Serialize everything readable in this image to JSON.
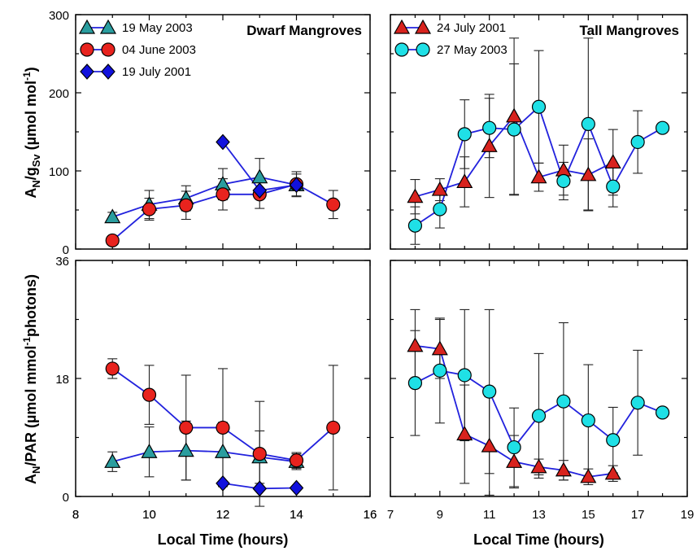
{
  "colors": {
    "line": "#2222dd",
    "triangle": "#2a9d9f",
    "circle_red": "#e8231e",
    "diamond": "#1111dd",
    "circle_cyan": "#1fe0e6",
    "triangle_red": "#d8231e"
  },
  "chart_data": [
    {
      "type": "scatter",
      "panel": "top-left",
      "title": "Dwarf Mangroves",
      "ylabel": "A_N/g_Sv (µmol mol-1)",
      "xlim": [
        8,
        16
      ],
      "ylim": [
        0,
        300
      ],
      "x_ticks": [
        "8",
        "10",
        "12",
        "14",
        "16"
      ],
      "y_ticks": [
        "0",
        "100",
        "200",
        "300"
      ],
      "legend_position": "top-left",
      "series": [
        {
          "name": "19 May 2003",
          "marker": "triangle",
          "x": [
            9,
            10,
            11,
            12,
            13,
            14
          ],
          "y": [
            41,
            57,
            65,
            83,
            92,
            82
          ],
          "err": [
            6,
            18,
            16,
            20,
            24,
            14
          ]
        },
        {
          "name": "04 June 2003",
          "marker": "circle",
          "x": [
            9,
            10,
            11,
            12,
            13,
            14,
            15
          ],
          "y": [
            11,
            51,
            56,
            70,
            70,
            83,
            57
          ],
          "err": [
            0,
            14,
            18,
            20,
            18,
            16,
            18
          ]
        },
        {
          "name": "19 July 2001",
          "marker": "diamond",
          "x": [
            12,
            13,
            14
          ],
          "y": [
            137,
            75,
            82
          ],
          "err": [
            0,
            0,
            0
          ]
        }
      ]
    },
    {
      "type": "scatter",
      "panel": "top-right",
      "title": "Tall Mangroves",
      "xlim": [
        7,
        19
      ],
      "ylim": [
        0,
        300
      ],
      "legend_position": "top-left",
      "series": [
        {
          "name": "24 July 2001",
          "marker": "triangle",
          "x": [
            8,
            9,
            10,
            11,
            12,
            13,
            14,
            15,
            16
          ],
          "y": [
            67,
            76,
            86,
            132,
            170,
            92,
            101,
            95,
            111
          ],
          "err": [
            22,
            14,
            32,
            66,
            100,
            18,
            32,
            46,
            42
          ]
        },
        {
          "name": "27 May 2003",
          "marker": "circle",
          "x": [
            8,
            9,
            10,
            11,
            12,
            13,
            14,
            15,
            16,
            17,
            18
          ],
          "y": [
            30,
            51,
            147,
            155,
            153,
            182,
            87,
            160,
            80,
            137,
            155
          ],
          "err": [
            24,
            24,
            44,
            38,
            84,
            72,
            24,
            110,
            26,
            40,
            6
          ]
        }
      ]
    },
    {
      "type": "scatter",
      "panel": "bottom-left",
      "ylabel": "A_N/PAR (µmol mmol-1 photons)",
      "xlabel": "Local Time (hours)",
      "xlim": [
        8,
        16
      ],
      "ylim": [
        0,
        36
      ],
      "x_ticks": [
        "8",
        "10",
        "12",
        "14",
        "16"
      ],
      "y_ticks": [
        "0",
        "18",
        "36"
      ],
      "series": [
        {
          "name": "19 May 2003",
          "marker": "triangle",
          "x": [
            9,
            10,
            11,
            12,
            13,
            14
          ],
          "y": [
            5.3,
            6.8,
            7.0,
            6.8,
            6.0,
            5.3
          ],
          "err": [
            1.5,
            3.8,
            4.5,
            4.5,
            4.0,
            1.2
          ]
        },
        {
          "name": "04 June 2003",
          "marker": "circle",
          "x": [
            9,
            10,
            11,
            12,
            13,
            14,
            15
          ],
          "y": [
            19.5,
            15.5,
            10.5,
            10.5,
            6.5,
            5.5,
            10.5
          ],
          "err": [
            1.5,
            4.5,
            8.0,
            9.0,
            8.0,
            1.2,
            9.5
          ]
        },
        {
          "name": "19 July 2001",
          "marker": "diamond",
          "x": [
            12,
            13,
            14
          ],
          "y": [
            2.0,
            1.2,
            1.3
          ],
          "err": [
            0,
            0,
            0
          ]
        }
      ]
    },
    {
      "type": "scatter",
      "panel": "bottom-right",
      "xlabel": "Local Time (hours)",
      "xlim": [
        7,
        19
      ],
      "ylim": [
        0,
        36
      ],
      "x_ticks": [
        "7",
        "9",
        "11",
        "13",
        "15",
        "17",
        "19"
      ],
      "series": [
        {
          "name": "24 July 2001",
          "marker": "triangle",
          "x": [
            8,
            9,
            10,
            11,
            12,
            13,
            14,
            15,
            16
          ],
          "y": [
            23,
            22.5,
            9.5,
            7.7,
            5.3,
            4.5,
            4.0,
            3.0,
            3.5
          ],
          "err": [
            5.5,
            4.5,
            7.5,
            7.5,
            4.0,
            1.2,
            1.5,
            1.2,
            1.2
          ]
        },
        {
          "name": "27 May 2003",
          "marker": "circle",
          "x": [
            8,
            9,
            10,
            11,
            12,
            13,
            14,
            15,
            16,
            17,
            18
          ],
          "y": [
            17.3,
            19.2,
            18.5,
            16.0,
            7.5,
            12.3,
            14.5,
            11.6,
            8.6,
            14.3,
            12.8
          ],
          "err": [
            8.0,
            8.0,
            10.0,
            12.5,
            6.0,
            9.5,
            12.0,
            8.5,
            5.0,
            8.0,
            0.5
          ]
        }
      ]
    }
  ]
}
